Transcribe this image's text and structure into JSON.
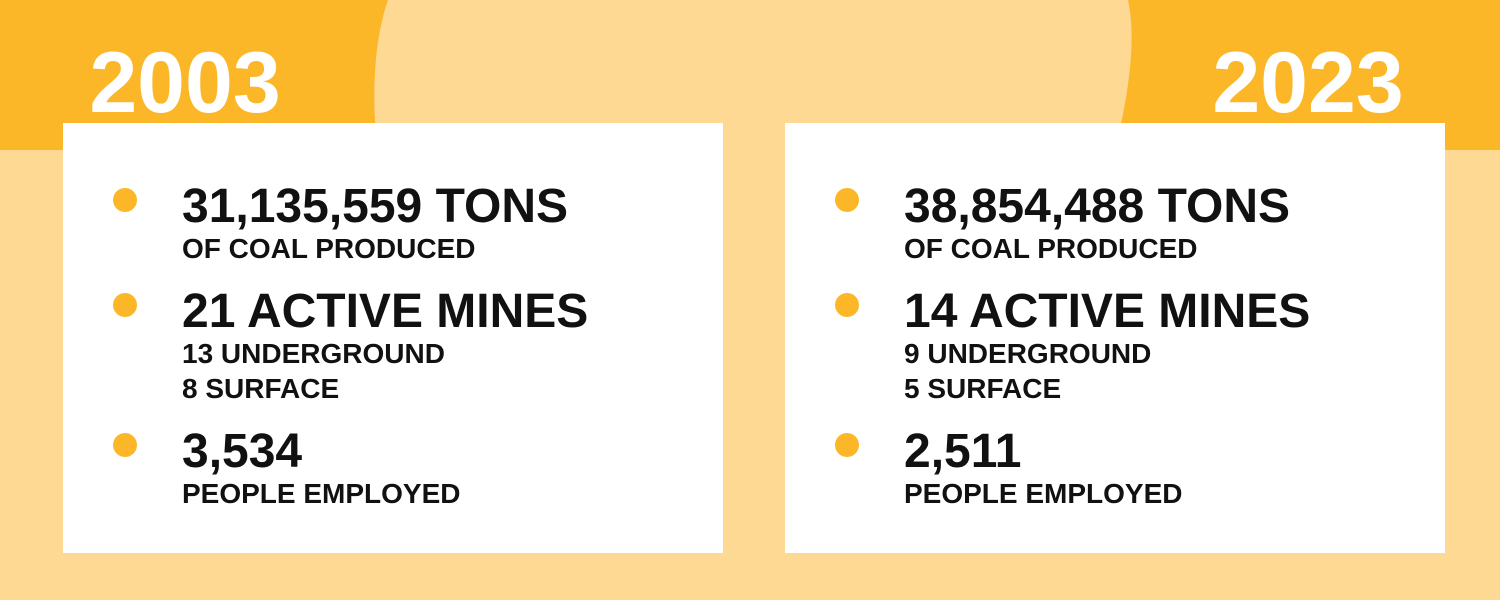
{
  "panels": [
    {
      "year": "2003",
      "items": [
        {
          "headline": "31,135,559 TONS",
          "lines": [
            "OF COAL PRODUCED"
          ]
        },
        {
          "headline": "21 ACTIVE MINES",
          "lines": [
            "13 UNDERGROUND",
            "8 SURFACE"
          ]
        },
        {
          "headline": "3,534",
          "lines": [
            "PEOPLE EMPLOYED"
          ]
        }
      ]
    },
    {
      "year": "2023",
      "items": [
        {
          "headline": "38,854,488 TONS",
          "lines": [
            "OF COAL PRODUCED"
          ]
        },
        {
          "headline": "14 ACTIVE MINES",
          "lines": [
            "9 UNDERGROUND",
            "5 SURFACE"
          ]
        },
        {
          "headline": "2,511",
          "lines": [
            "PEOPLE EMPLOYED"
          ]
        }
      ]
    }
  ]
}
